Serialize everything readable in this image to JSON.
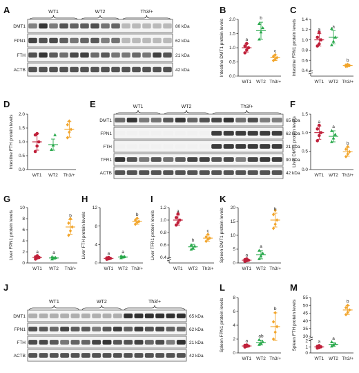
{
  "colors": {
    "WT1": "#c0203a",
    "WT2": "#27a84a",
    "Th3/+": "#f2a52b"
  },
  "panel_letters": [
    "A",
    "B",
    "C",
    "D",
    "E",
    "F",
    "G",
    "H",
    "I",
    "J",
    "K",
    "L",
    "M"
  ],
  "blots": [
    {
      "panel": "A",
      "groups": [
        "WT1",
        "WT2",
        "Th3/+"
      ],
      "lanes_per_group": [
        5,
        4,
        5
      ],
      "proteins": [
        "DMT1",
        "FPN1",
        "FTH",
        "ACTB"
      ],
      "sizes": [
        "80 kDa",
        "62 kDa",
        "21 kDa",
        "42 kDa"
      ]
    },
    {
      "panel": "E",
      "groups": [
        "WT1",
        "WT2",
        "Th3/+"
      ],
      "lanes_per_group": [
        4,
        4,
        6
      ],
      "proteins": [
        "DMT1",
        "FPN1",
        "FTH",
        "TFR1",
        "ACTB"
      ],
      "sizes": [
        "65 kDa",
        "62 kDa",
        "21 kDa",
        "90 kDa",
        "42 kDa"
      ]
    },
    {
      "panel": "J",
      "groups": [
        "WT1",
        "WT2",
        "Th3/+"
      ],
      "lanes_per_group": [
        5,
        4,
        6
      ],
      "proteins": [
        "DMT1",
        "FPN1",
        "FTH",
        "ACTB"
      ],
      "sizes": [
        "65 kDa",
        "62 kDa",
        "21 kDa",
        "42 kDa"
      ]
    }
  ],
  "chart_data": [
    {
      "panel": "B",
      "type": "scatter",
      "ylabel": "Intestine DMT1 protein levels",
      "categories": [
        "WT1",
        "WT2",
        "Th3/+"
      ],
      "ylim": [
        0.0,
        2.0
      ],
      "yticks": [
        "0.0",
        "0.5",
        "1.0",
        "1.5",
        "2.0"
      ],
      "axis_break": false,
      "letters": [
        "a",
        "b",
        "c"
      ],
      "series": [
        {
          "name": "WT1",
          "mean": 1.0,
          "sd": 0.15,
          "points": [
            0.82,
            0.92,
            1.0,
            1.06,
            1.15
          ]
        },
        {
          "name": "WT2",
          "mean": 1.6,
          "sd": 0.3,
          "points": [
            1.3,
            1.55,
            1.7,
            1.85
          ]
        },
        {
          "name": "Th3/+",
          "mean": 0.65,
          "sd": 0.1,
          "points": [
            0.55,
            0.6,
            0.65,
            0.7,
            0.75
          ]
        }
      ]
    },
    {
      "panel": "C",
      "type": "scatter",
      "ylabel": "Intestine FPN1 protein levels",
      "categories": [
        "WT1",
        "WT2",
        "Th3/+"
      ],
      "ylim": [
        0.4,
        1.4
      ],
      "yticks": [
        "0.4",
        "0.6",
        "0.8",
        "1.0",
        "1.2",
        "1.4"
      ],
      "axis_break": true,
      "letters": [
        "a",
        "a",
        "b"
      ],
      "series": [
        {
          "name": "WT1",
          "mean": 1.0,
          "sd": 0.12,
          "points": [
            0.88,
            0.92,
            1.0,
            1.05,
            1.15
          ]
        },
        {
          "name": "WT2",
          "mean": 1.05,
          "sd": 0.13,
          "points": [
            0.9,
            0.97,
            1.05,
            1.22
          ]
        },
        {
          "name": "Th3/+",
          "mean": 0.5,
          "sd": 0.02,
          "points": [
            0.48,
            0.49,
            0.5,
            0.51,
            0.52
          ]
        }
      ]
    },
    {
      "panel": "D",
      "type": "scatter",
      "ylabel": "Intestine FTH protein levels",
      "categories": [
        "WT1",
        "WT2",
        "Th3/+"
      ],
      "ylim": [
        0.0,
        2.0
      ],
      "yticks": [
        "0.0",
        "0.5",
        "1.0",
        "1.5",
        "2.0"
      ],
      "axis_break": false,
      "letters": [
        "",
        "",
        ""
      ],
      "series": [
        {
          "name": "WT1",
          "mean": 1.0,
          "sd": 0.3,
          "points": [
            0.65,
            0.85,
            1.0,
            1.25,
            1.3
          ]
        },
        {
          "name": "WT2",
          "mean": 0.9,
          "sd": 0.2,
          "points": [
            0.72,
            0.88,
            1.25
          ]
        },
        {
          "name": "Th3/+",
          "mean": 1.45,
          "sd": 0.28,
          "points": [
            1.15,
            1.35,
            1.45,
            1.62,
            1.75
          ]
        }
      ]
    },
    {
      "panel": "F",
      "type": "scatter",
      "ylabel": "Liver DMT1 protein levels",
      "categories": [
        "WT1",
        "WT2",
        "Th3/+"
      ],
      "ylim": [
        0.0,
        1.5
      ],
      "yticks": [
        "0.0",
        "0.5",
        "1.0",
        "1.5"
      ],
      "axis_break": false,
      "letters": [
        "a",
        "a",
        "b"
      ],
      "series": [
        {
          "name": "WT1",
          "mean": 1.0,
          "sd": 0.18,
          "points": [
            0.78,
            0.92,
            1.0,
            1.1,
            1.2
          ]
        },
        {
          "name": "WT2",
          "mean": 0.9,
          "sd": 0.15,
          "points": [
            0.75,
            0.85,
            0.95,
            1.05
          ]
        },
        {
          "name": "Th3/+",
          "mean": 0.48,
          "sd": 0.12,
          "points": [
            0.35,
            0.42,
            0.48,
            0.55,
            0.62
          ]
        }
      ]
    },
    {
      "panel": "G",
      "type": "scatter",
      "ylabel": "Liver FPN1 protein levels",
      "categories": [
        "WT1",
        "WT2",
        "Th3/+"
      ],
      "ylim": [
        0,
        10
      ],
      "yticks": [
        "0",
        "2",
        "4",
        "6",
        "8",
        "10"
      ],
      "axis_break": false,
      "letters": [
        "a",
        "a",
        "b"
      ],
      "series": [
        {
          "name": "WT1",
          "mean": 1.0,
          "sd": 0.25,
          "points": [
            0.7,
            0.9,
            1.0,
            1.1,
            1.3
          ]
        },
        {
          "name": "WT2",
          "mean": 0.9,
          "sd": 0.2,
          "points": [
            0.7,
            0.85,
            0.95,
            1.1
          ]
        },
        {
          "name": "Th3/+",
          "mean": 6.5,
          "sd": 1.3,
          "points": [
            5.0,
            5.8,
            6.5,
            7.2,
            8.0
          ]
        }
      ]
    },
    {
      "panel": "H",
      "type": "scatter",
      "ylabel": "Liver FTH protein levels",
      "categories": [
        "WT1",
        "WT2",
        "Th3/+"
      ],
      "ylim": [
        0,
        12
      ],
      "yticks": [
        "0",
        "4",
        "8",
        "12"
      ],
      "axis_break": false,
      "letters": [
        "a",
        "a",
        "b"
      ],
      "series": [
        {
          "name": "WT1",
          "mean": 1.0,
          "sd": 0.2,
          "points": [
            0.8,
            0.9,
            1.0,
            1.1,
            1.2
          ]
        },
        {
          "name": "WT2",
          "mean": 1.3,
          "sd": 0.2,
          "points": [
            1.1,
            1.25,
            1.35,
            1.5
          ]
        },
        {
          "name": "Th3/+",
          "mean": 9.0,
          "sd": 0.6,
          "points": [
            8.4,
            8.8,
            9.0,
            9.3,
            9.7
          ]
        }
      ]
    },
    {
      "panel": "I",
      "type": "scatter",
      "ylabel": "Liver TFR1 protein levels",
      "categories": [
        "WT1",
        "WT2",
        "Th3/+"
      ],
      "ylim": [
        0.4,
        1.2
      ],
      "yticks": [
        "0.4",
        "0.6",
        "0.8",
        "1.0",
        "1.2"
      ],
      "axis_break": true,
      "letters": [
        "a",
        "b",
        "c"
      ],
      "series": [
        {
          "name": "WT1",
          "mean": 1.0,
          "sd": 0.08,
          "points": [
            0.92,
            0.96,
            1.0,
            1.04,
            1.1
          ]
        },
        {
          "name": "WT2",
          "mean": 0.57,
          "sd": 0.04,
          "points": [
            0.53,
            0.55,
            0.58,
            0.6
          ]
        },
        {
          "name": "Th3/+",
          "mean": 0.71,
          "sd": 0.05,
          "points": [
            0.66,
            0.69,
            0.71,
            0.73,
            0.77
          ]
        }
      ]
    },
    {
      "panel": "K",
      "type": "scatter",
      "ylabel": "Spleen DMT1 protein levels",
      "categories": [
        "WT1",
        "WT2",
        "Th3/+"
      ],
      "ylim": [
        0,
        20
      ],
      "yticks": [
        "0",
        "5",
        "10",
        "15",
        "20"
      ],
      "axis_break": false,
      "letters": [
        "a",
        "a",
        "b"
      ],
      "series": [
        {
          "name": "WT1",
          "mean": 1.0,
          "sd": 0.4,
          "points": [
            0.6,
            0.8,
            1.0,
            1.2,
            1.5
          ]
        },
        {
          "name": "WT2",
          "mean": 3.0,
          "sd": 1.5,
          "points": [
            1.5,
            2.5,
            3.5,
            4.5
          ]
        },
        {
          "name": "Th3/+",
          "mean": 15.5,
          "sd": 2.5,
          "points": [
            12.5,
            14.0,
            15.5,
            17.5,
            19.0
          ]
        }
      ]
    },
    {
      "panel": "L",
      "type": "scatter",
      "ylabel": "Spleen FPN1 protein levels",
      "categories": [
        "WT1",
        "WT2",
        "Th3/+"
      ],
      "ylim": [
        0,
        8
      ],
      "yticks": [
        "0",
        "2",
        "4",
        "6",
        "8"
      ],
      "axis_break": false,
      "letters": [
        "a",
        "ab",
        "b"
      ],
      "series": [
        {
          "name": "WT1",
          "mean": 1.0,
          "sd": 0.15,
          "points": [
            0.85,
            0.95,
            1.0,
            1.1,
            1.15
          ]
        },
        {
          "name": "WT2",
          "mean": 1.5,
          "sd": 0.35,
          "points": [
            1.2,
            1.4,
            1.6,
            1.9
          ]
        },
        {
          "name": "Th3/+",
          "mean": 3.8,
          "sd": 2.0,
          "points": [
            2.0,
            3.0,
            3.8,
            4.5,
            5.8
          ]
        }
      ]
    },
    {
      "panel": "M",
      "type": "scatter",
      "ylabel": "Spleen FTH protein levels",
      "categories": [
        "WT1",
        "WT2",
        "Th3/+"
      ],
      "ylim": [
        0,
        55
      ],
      "yticks": [
        "0",
        "1",
        "2",
        "30",
        "35",
        "40",
        "45",
        "50",
        "55"
      ],
      "axis_break": true,
      "letters": [
        "a",
        "a",
        "b"
      ],
      "series": [
        {
          "name": "WT1",
          "mean": 1.0,
          "sd": 0.2,
          "points": [
            0.8,
            0.9,
            1.0,
            1.1,
            1.2
          ]
        },
        {
          "name": "WT2",
          "mean": 1.4,
          "sd": 0.3,
          "points": [
            1.1,
            1.3,
            1.5,
            1.8
          ]
        },
        {
          "name": "Th3/+",
          "mean": 47,
          "sd": 2.8,
          "points": [
            44,
            45.5,
            47,
            48.5,
            50
          ]
        }
      ]
    }
  ]
}
